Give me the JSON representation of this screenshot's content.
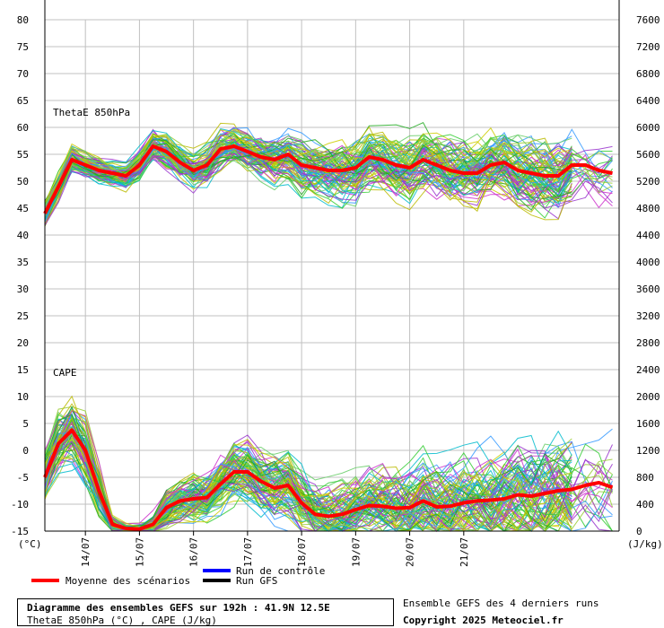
{
  "chart_data": {
    "type": "line",
    "left_unit": "(°C)",
    "right_unit": "(J/kg)",
    "left_ticks": [
      80,
      75,
      70,
      65,
      60,
      55,
      50,
      45,
      40,
      35,
      30,
      25,
      20,
      15,
      10,
      5,
      0,
      -5,
      -10,
      -15
    ],
    "right_ticks": [
      7600,
      7200,
      6800,
      6400,
      6000,
      5600,
      5200,
      4800,
      4400,
      4000,
      3600,
      3200,
      2800,
      2400,
      2000,
      1600,
      1200,
      800,
      400,
      0
    ],
    "ylim_left": [
      -15,
      80
    ],
    "ylim_right": [
      0,
      7600
    ],
    "grid": true,
    "x_tick_labels": [
      "14/07",
      "15/07",
      "16/07",
      "17/07",
      "18/07",
      "19/07",
      "20/07",
      "21/07"
    ],
    "step_hours": 6,
    "panels": [
      {
        "label": "ThetaE 850hPa",
        "axis": "left",
        "mean_series": [
          44,
          49,
          54,
          53,
          52,
          51.5,
          51,
          53,
          56.5,
          55.5,
          53.5,
          52,
          53,
          56,
          56.5,
          55.5,
          54.5,
          54,
          55,
          53,
          52.5,
          52,
          52,
          52.5,
          54.5,
          54,
          53,
          52.5,
          54,
          53,
          52,
          51.5,
          51.5,
          53,
          53.5,
          52,
          51.5,
          51,
          51,
          53,
          53,
          52,
          51.5
        ],
        "spread_series": [
          3,
          3,
          3,
          2.5,
          2.5,
          2.5,
          2.5,
          3,
          3,
          3.5,
          3.5,
          3.5,
          4,
          4,
          4,
          4.5,
          4.5,
          5,
          5,
          5.5,
          5.5,
          5.5,
          6,
          6,
          6,
          6,
          6.5,
          6.5,
          6.5,
          6.5,
          6.5,
          6.5,
          6.5,
          6.5,
          6.5,
          7,
          7,
          7,
          7,
          7,
          7,
          7,
          7
        ]
      },
      {
        "label": "CAPE",
        "axis": "right",
        "mean_series": [
          800,
          1300,
          1500,
          1200,
          600,
          100,
          40,
          30,
          100,
          350,
          450,
          480,
          500,
          700,
          880,
          880,
          740,
          640,
          680,
          420,
          250,
          220,
          250,
          320,
          380,
          370,
          340,
          350,
          450,
          360,
          370,
          420,
          450,
          460,
          480,
          540,
          520,
          560,
          600,
          620,
          680,
          720,
          650
        ],
        "spread_series": [
          450,
          600,
          600,
          600,
          400,
          150,
          80,
          90,
          180,
          300,
          350,
          400,
          420,
          450,
          480,
          500,
          520,
          540,
          560,
          540,
          500,
          500,
          520,
          560,
          600,
          620,
          640,
          660,
          680,
          700,
          720,
          740,
          760,
          780,
          800,
          820,
          840,
          860,
          880,
          900,
          920,
          940,
          960
        ]
      }
    ],
    "legend": [
      {
        "label": "Moyenne des scénarios",
        "color": "#ff0000"
      },
      {
        "label": "Run de contrôle",
        "color": "#0000ff"
      },
      {
        "label": "Run GFS",
        "color": "#000000"
      }
    ]
  },
  "info": {
    "title": "Diagramme des ensembles GEFS sur 192h : 41.9N 12.5E",
    "subtitle": "ThetaE 850hPa (°C) , CAPE (J/kg)",
    "note": "Ensemble GEFS des 4 derniers runs",
    "copyright": "Copyright 2025 Meteociel.fr"
  },
  "colors": {
    "member_palette": [
      "#33cc33",
      "#cccc00",
      "#cc33cc",
      "#00bbcc",
      "#99cc33",
      "#66cc66",
      "#3399ff",
      "#bbbb00",
      "#9933cc",
      "#22aa22"
    ],
    "mean": "#ff0000",
    "control": "#0000ff",
    "gfs": "#000000",
    "grid": "#c0c0c0"
  }
}
